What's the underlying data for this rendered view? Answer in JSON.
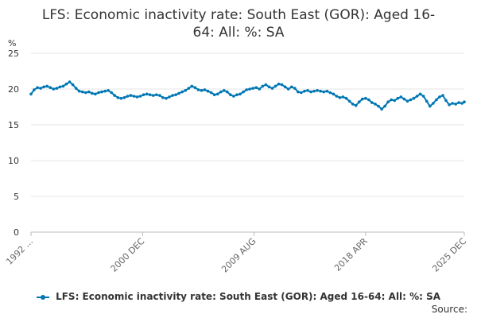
{
  "chart_data": {
    "type": "line",
    "title": "LFS: Economic inactivity rate: South East (GOR): Aged 16-64: All: %: SA",
    "title_lines": [
      "LFS: Economic inactivity rate: South East (GOR): Aged 16-",
      "64: All: %: SA"
    ],
    "ylabel": "%",
    "ylim": [
      0,
      25
    ],
    "yticks": [
      0,
      5,
      10,
      15,
      20,
      25
    ],
    "xlim": [
      1992.25,
      2025.92
    ],
    "xticks": [
      {
        "label": "1992 ...",
        "value": 1992.25
      },
      {
        "label": "2000 DEC",
        "value": 2000.92
      },
      {
        "label": "2009 AUG",
        "value": 2009.58
      },
      {
        "label": "2018 APR",
        "value": 2018.25
      },
      {
        "label": "2025 DEC",
        "value": 2025.92
      }
    ],
    "grid": true,
    "legend_position": "bottom",
    "series": [
      {
        "name": "LFS: Economic inactivity rate: South East (GOR): Aged 16-64: All: %: SA",
        "color": "#0077b3",
        "points": [
          [
            1992.25,
            19.3
          ],
          [
            1992.5,
            19.9
          ],
          [
            1992.75,
            20.2
          ],
          [
            1993.0,
            20.1
          ],
          [
            1993.25,
            20.3
          ],
          [
            1993.5,
            20.4
          ],
          [
            1993.75,
            20.2
          ],
          [
            1994.0,
            20.0
          ],
          [
            1994.25,
            20.1
          ],
          [
            1994.5,
            20.3
          ],
          [
            1994.75,
            20.4
          ],
          [
            1995.0,
            20.7
          ],
          [
            1995.25,
            21.0
          ],
          [
            1995.5,
            20.6
          ],
          [
            1995.75,
            20.1
          ],
          [
            1996.0,
            19.7
          ],
          [
            1996.25,
            19.6
          ],
          [
            1996.5,
            19.5
          ],
          [
            1996.75,
            19.6
          ],
          [
            1997.0,
            19.4
          ],
          [
            1997.25,
            19.3
          ],
          [
            1997.5,
            19.5
          ],
          [
            1997.75,
            19.6
          ],
          [
            1998.0,
            19.7
          ],
          [
            1998.25,
            19.8
          ],
          [
            1998.5,
            19.5
          ],
          [
            1998.75,
            19.1
          ],
          [
            1999.0,
            18.8
          ],
          [
            1999.25,
            18.7
          ],
          [
            1999.5,
            18.8
          ],
          [
            1999.75,
            19.0
          ],
          [
            2000.0,
            19.1
          ],
          [
            2000.25,
            19.0
          ],
          [
            2000.5,
            18.9
          ],
          [
            2000.75,
            19.0
          ],
          [
            2001.0,
            19.2
          ],
          [
            2001.25,
            19.3
          ],
          [
            2001.5,
            19.2
          ],
          [
            2001.75,
            19.1
          ],
          [
            2002.0,
            19.2
          ],
          [
            2002.25,
            19.1
          ],
          [
            2002.5,
            18.8
          ],
          [
            2002.75,
            18.7
          ],
          [
            2003.0,
            18.9
          ],
          [
            2003.25,
            19.1
          ],
          [
            2003.5,
            19.2
          ],
          [
            2003.75,
            19.4
          ],
          [
            2004.0,
            19.6
          ],
          [
            2004.25,
            19.8
          ],
          [
            2004.5,
            20.1
          ],
          [
            2004.75,
            20.4
          ],
          [
            2005.0,
            20.2
          ],
          [
            2005.25,
            19.9
          ],
          [
            2005.5,
            19.8
          ],
          [
            2005.75,
            19.9
          ],
          [
            2006.0,
            19.7
          ],
          [
            2006.25,
            19.5
          ],
          [
            2006.5,
            19.2
          ],
          [
            2006.75,
            19.3
          ],
          [
            2007.0,
            19.6
          ],
          [
            2007.25,
            19.8
          ],
          [
            2007.5,
            19.6
          ],
          [
            2007.75,
            19.2
          ],
          [
            2008.0,
            19.0
          ],
          [
            2008.25,
            19.2
          ],
          [
            2008.5,
            19.3
          ],
          [
            2008.75,
            19.6
          ],
          [
            2009.0,
            19.9
          ],
          [
            2009.25,
            20.0
          ],
          [
            2009.5,
            20.1
          ],
          [
            2009.75,
            20.2
          ],
          [
            2010.0,
            20.0
          ],
          [
            2010.25,
            20.4
          ],
          [
            2010.5,
            20.6
          ],
          [
            2010.75,
            20.3
          ],
          [
            2011.0,
            20.1
          ],
          [
            2011.25,
            20.4
          ],
          [
            2011.5,
            20.7
          ],
          [
            2011.75,
            20.6
          ],
          [
            2012.0,
            20.3
          ],
          [
            2012.25,
            20.0
          ],
          [
            2012.5,
            20.3
          ],
          [
            2012.75,
            20.1
          ],
          [
            2013.0,
            19.6
          ],
          [
            2013.25,
            19.5
          ],
          [
            2013.5,
            19.7
          ],
          [
            2013.75,
            19.8
          ],
          [
            2014.0,
            19.6
          ],
          [
            2014.25,
            19.7
          ],
          [
            2014.5,
            19.8
          ],
          [
            2014.75,
            19.7
          ],
          [
            2015.0,
            19.6
          ],
          [
            2015.25,
            19.7
          ],
          [
            2015.5,
            19.5
          ],
          [
            2015.75,
            19.3
          ],
          [
            2016.0,
            19.0
          ],
          [
            2016.25,
            18.8
          ],
          [
            2016.5,
            18.9
          ],
          [
            2016.75,
            18.7
          ],
          [
            2017.0,
            18.3
          ],
          [
            2017.25,
            17.9
          ],
          [
            2017.5,
            17.7
          ],
          [
            2017.75,
            18.2
          ],
          [
            2018.0,
            18.6
          ],
          [
            2018.25,
            18.7
          ],
          [
            2018.5,
            18.5
          ],
          [
            2018.75,
            18.1
          ],
          [
            2019.0,
            17.9
          ],
          [
            2019.25,
            17.6
          ],
          [
            2019.5,
            17.2
          ],
          [
            2019.75,
            17.6
          ],
          [
            2020.0,
            18.2
          ],
          [
            2020.25,
            18.5
          ],
          [
            2020.5,
            18.4
          ],
          [
            2020.75,
            18.7
          ],
          [
            2021.0,
            18.9
          ],
          [
            2021.25,
            18.6
          ],
          [
            2021.5,
            18.3
          ],
          [
            2021.75,
            18.5
          ],
          [
            2022.0,
            18.7
          ],
          [
            2022.25,
            19.0
          ],
          [
            2022.5,
            19.3
          ],
          [
            2022.75,
            19.0
          ],
          [
            2023.0,
            18.3
          ],
          [
            2023.25,
            17.6
          ],
          [
            2023.5,
            18.0
          ],
          [
            2023.75,
            18.5
          ],
          [
            2024.0,
            18.9
          ],
          [
            2024.25,
            19.1
          ],
          [
            2024.5,
            18.4
          ],
          [
            2024.75,
            17.8
          ],
          [
            2025.0,
            18.0
          ],
          [
            2025.25,
            17.9
          ],
          [
            2025.5,
            18.1
          ],
          [
            2025.75,
            18.0
          ],
          [
            2025.92,
            18.2
          ]
        ]
      }
    ]
  },
  "legend": {
    "label": "LFS: Economic inactivity rate: South East (GOR): Aged 16-64: All: %: SA"
  },
  "footer": {
    "source": "Source:"
  }
}
